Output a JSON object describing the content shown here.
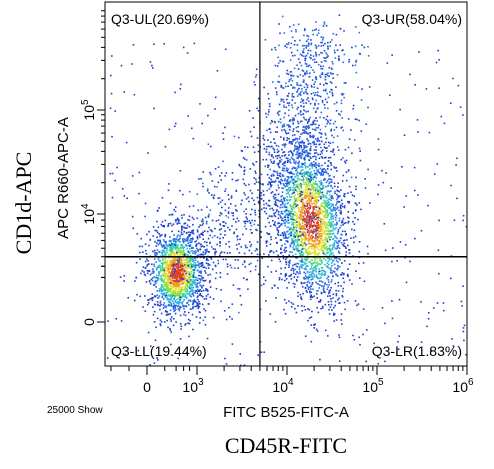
{
  "chart_data": {
    "type": "scatter",
    "title": "",
    "outer_xlabel": "CD45R-FITC",
    "outer_ylabel": "CD1d-APC",
    "xlabel": "FITC B525-FITC-A",
    "ylabel": "APC R660-APC-A",
    "event_count_label": "25000 Show",
    "x_scale": "biexponential",
    "y_scale": "biexponential",
    "x_ticks": [
      {
        "value": 0,
        "base": "0",
        "exp": ""
      },
      {
        "value": 1000,
        "base": "10",
        "exp": "3"
      },
      {
        "value": 10000,
        "base": "10",
        "exp": "4"
      },
      {
        "value": 100000,
        "base": "10",
        "exp": "5"
      },
      {
        "value": 1000000,
        "base": "10",
        "exp": "6"
      }
    ],
    "y_ticks": [
      {
        "value": 0,
        "base": "0",
        "exp": ""
      },
      {
        "value": 10000,
        "base": "10",
        "exp": "4"
      },
      {
        "value": 100000,
        "base": "10",
        "exp": "5"
      }
    ],
    "gate": {
      "x": 5000,
      "y": 4000
    },
    "quadrants": [
      {
        "label": "Q3-UL(20.69%)",
        "position": "top-left"
      },
      {
        "label": "Q3-UR(58.04%)",
        "position": "top-right"
      },
      {
        "label": "Q3-LL(19.44%)",
        "position": "bottom-left"
      },
      {
        "label": "Q3-LR(1.83%)",
        "position": "bottom-right"
      }
    ],
    "populations": [
      {
        "name": "LL cluster",
        "center_x": 300,
        "center_y": 2500,
        "percent": 19.44
      },
      {
        "name": "UR cluster",
        "center_x": 18000,
        "center_y": 9000,
        "percent": 58.04
      }
    ]
  }
}
